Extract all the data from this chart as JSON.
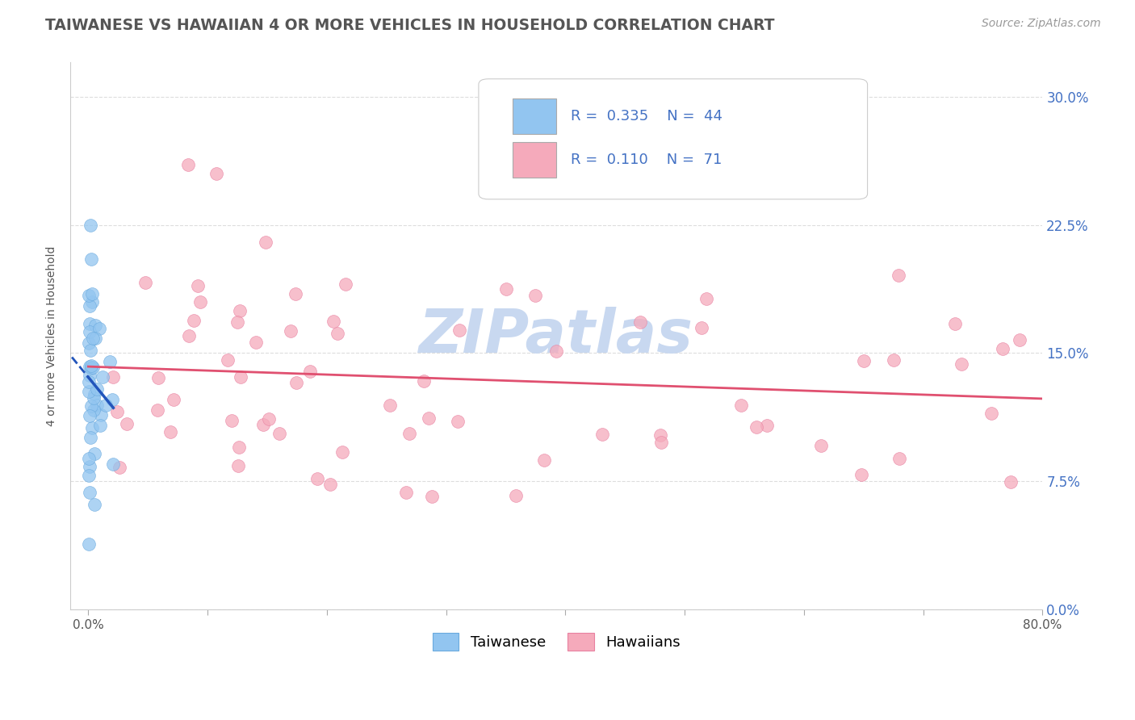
{
  "title": "TAIWANESE VS HAWAIIAN 4 OR MORE VEHICLES IN HOUSEHOLD CORRELATION CHART",
  "source_text": "Source: ZipAtlas.com",
  "ylabel": "4 or more Vehicles in Household",
  "xlim": [
    0.0,
    80.0
  ],
  "ylim": [
    0.0,
    32.0
  ],
  "yticks": [
    0.0,
    7.5,
    15.0,
    22.5,
    30.0
  ],
  "ytick_labels_right": [
    "0.0%",
    "7.5%",
    "15.0%",
    "22.5%",
    "30.0%"
  ],
  "xtick_positions": [
    0.0,
    10.0,
    20.0,
    30.0,
    40.0,
    50.0,
    60.0,
    70.0,
    80.0
  ],
  "xtick_labels": [
    "0.0%",
    "",
    "",
    "",
    "",
    "",
    "",
    "",
    "80.0%"
  ],
  "taiwanese_R": 0.335,
  "taiwanese_N": 44,
  "hawaiian_R": 0.11,
  "hawaiian_N": 71,
  "taiwanese_color": "#92C5F0",
  "taiwanese_edge": "#6AAADE",
  "hawaiian_color": "#F5AABB",
  "hawaiian_edge": "#E880A0",
  "taiwanese_line_color": "#2255BB",
  "hawaiian_line_color": "#E05070",
  "watermark": "ZIPatlas",
  "watermark_color": "#C8D8F0",
  "legend_taiwanese": "Taiwanese",
  "legend_hawaiians": "Hawaiians",
  "title_color": "#555555",
  "source_color": "#999999",
  "ylabel_color": "#555555",
  "right_tick_color": "#4472C4",
  "grid_color": "#DDDDDD",
  "tw_seed": 42,
  "hw_seed": 99,
  "taiwanese_x_mean": 0.5,
  "taiwanese_x_max": 3.5,
  "hawaiian_x_min": 2.0,
  "hawaiian_x_max": 79.0
}
